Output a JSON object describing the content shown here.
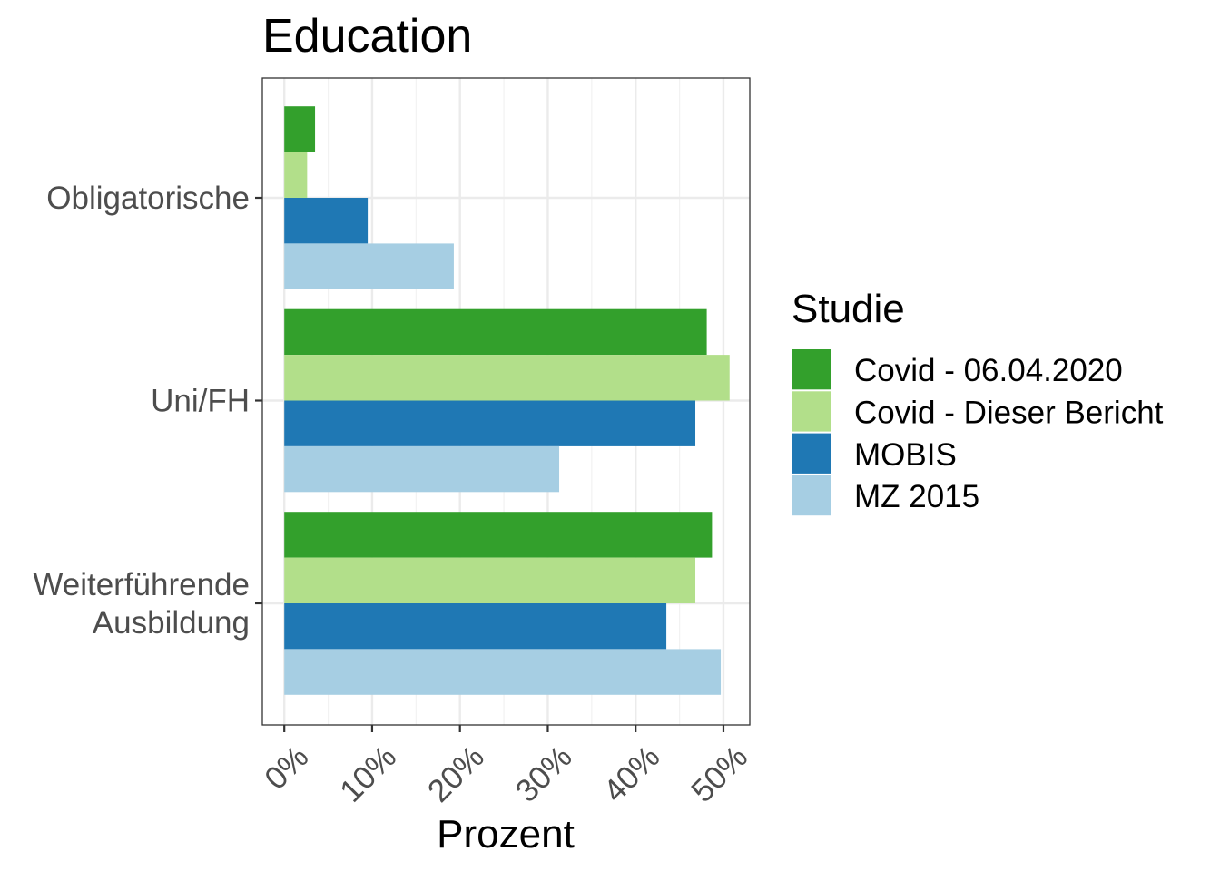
{
  "chart_data": {
    "type": "bar",
    "orientation": "horizontal",
    "title": "Education",
    "xlabel": "Prozent",
    "ylabel": "",
    "xlim": [
      -0.025,
      0.53
    ],
    "x_ticks": [
      0,
      0.1,
      0.2,
      0.3,
      0.4,
      0.5
    ],
    "x_tick_labels": [
      "0%",
      "10%",
      "20%",
      "30%",
      "40%",
      "50%"
    ],
    "categories": [
      "Obligatorische",
      "Uni/FH",
      "Weiterführende\nAusbildung"
    ],
    "grid": true,
    "legend": {
      "title": "Studie",
      "position": "right"
    },
    "series": [
      {
        "name": "Covid - 06.04.2020",
        "color": "#33a02c",
        "values": [
          0.035,
          0.481,
          0.487
        ]
      },
      {
        "name": "Covid - Dieser Bericht",
        "color": "#b2df8a",
        "values": [
          0.026,
          0.507,
          0.468
        ]
      },
      {
        "name": "MOBIS",
        "color": "#1f78b4",
        "values": [
          0.095,
          0.468,
          0.435
        ]
      },
      {
        "name": "MZ 2015",
        "color": "#a6cee3",
        "values": [
          0.193,
          0.313,
          0.497
        ]
      }
    ]
  }
}
